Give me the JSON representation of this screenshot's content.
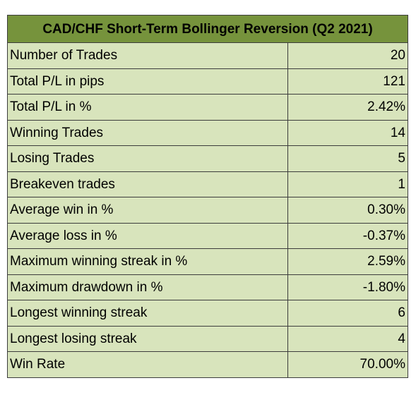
{
  "table": {
    "title": "CAD/CHF Short-Term Bollinger Reversion (Q2 2021)",
    "rows": [
      {
        "label": "Number of Trades",
        "value": "20"
      },
      {
        "label": "Total P/L in pips",
        "value": "121"
      },
      {
        "label": "Total P/L in %",
        "value": "2.42%"
      },
      {
        "label": "Winning Trades",
        "value": "14"
      },
      {
        "label": "Losing Trades",
        "value": "5"
      },
      {
        "label": "Breakeven trades",
        "value": "1"
      },
      {
        "label": "Average win in %",
        "value": "0.30%"
      },
      {
        "label": "Average loss in %",
        "value": "-0.37%"
      },
      {
        "label": "Maximum winning streak in %",
        "value": "2.59%"
      },
      {
        "label": "Maximum drawdown in %",
        "value": "-1.80%"
      },
      {
        "label": "Longest winning streak",
        "value": "6"
      },
      {
        "label": "Longest losing streak",
        "value": "4"
      },
      {
        "label": "Win Rate",
        "value": "70.00%"
      }
    ],
    "colors": {
      "header_bg": "#76933c",
      "row_bg": "#d8e4bc",
      "border": "#3c3c3c"
    }
  }
}
